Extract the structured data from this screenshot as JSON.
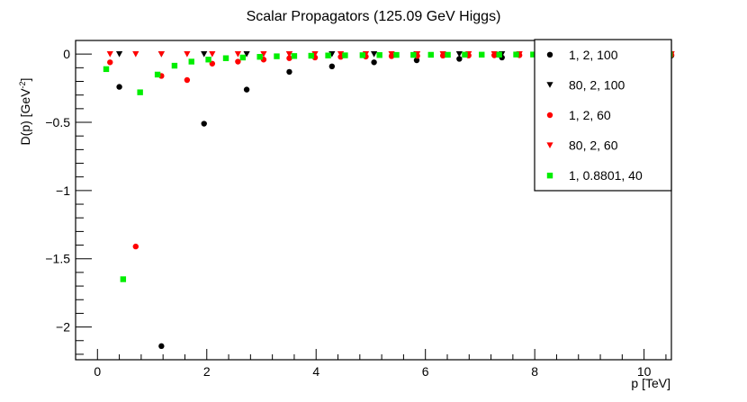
{
  "chart_data": {
    "type": "scatter",
    "title": "Scalar Propagators (125.09 GeV Higgs)",
    "xlabel": "p [TeV]",
    "ylabel": "D(p) [GeV⁻²]",
    "ylabel_main": "D(p) [GeV",
    "ylabel_exp": "-2",
    "ylabel_tail": "]",
    "xlim": [
      -0.4,
      10.5
    ],
    "ylim": [
      -2.24,
      0.1
    ],
    "xticks": [
      {
        "value": 0,
        "label": "0"
      },
      {
        "value": 2,
        "label": "2"
      },
      {
        "value": 4,
        "label": "4"
      },
      {
        "value": 6,
        "label": "6"
      },
      {
        "value": 8,
        "label": "8"
      },
      {
        "value": 10,
        "label": "10"
      }
    ],
    "yticks": [
      {
        "value": 0,
        "label": "0"
      },
      {
        "value": -0.5,
        "label": "−0.5"
      },
      {
        "value": -1,
        "label": "−1"
      },
      {
        "value": -1.5,
        "label": "−1.5"
      },
      {
        "value": -2,
        "label": "−2"
      }
    ],
    "grid": false,
    "legend_position": "top-right",
    "series": [
      {
        "name": "1, 2, 100",
        "color": "#000000",
        "marker": "circle",
        "x": [
          0.4,
          1.17,
          1.95,
          2.73,
          3.51,
          4.29,
          5.06,
          5.84,
          6.62,
          7.4,
          8.18,
          8.96,
          9.73,
          10.5
        ],
        "y": [
          -0.24,
          -2.14,
          -0.51,
          -0.26,
          -0.13,
          -0.09,
          -0.06,
          -0.045,
          -0.035,
          -0.025,
          -0.02,
          -0.015,
          -0.012,
          -0.01
        ]
      },
      {
        "name": "80, 2, 100",
        "color": "#000000",
        "marker": "triangle-down",
        "x": [
          0.4,
          1.17,
          1.95,
          2.73,
          3.51,
          4.29,
          5.06,
          5.84,
          6.62,
          7.4,
          8.18,
          8.96,
          9.73,
          10.5
        ],
        "y": [
          0.0,
          0.0,
          0.0,
          0.0,
          0.0,
          0.0,
          0.0,
          0.0,
          0.0,
          0.0,
          0.0,
          0.0,
          0.0,
          0.0
        ]
      },
      {
        "name": "1, 2, 60",
        "color": "#ff0000",
        "marker": "circle",
        "x": [
          0.23,
          0.7,
          1.17,
          1.64,
          2.1,
          2.57,
          3.04,
          3.51,
          3.98,
          4.45,
          4.91,
          5.38,
          5.85,
          6.32,
          6.79,
          7.26,
          7.72,
          8.19,
          8.66,
          9.13,
          9.6,
          10.07,
          10.5
        ],
        "y": [
          -0.06,
          -1.41,
          -0.16,
          -0.19,
          -0.07,
          -0.055,
          -0.04,
          -0.03,
          -0.025,
          -0.02,
          -0.018,
          -0.015,
          -0.013,
          -0.011,
          -0.01,
          -0.009,
          -0.008,
          -0.007,
          -0.006,
          -0.006,
          -0.005,
          -0.005,
          -0.005
        ]
      },
      {
        "name": "80, 2, 60",
        "color": "#ff0000",
        "marker": "triangle-down",
        "x": [
          0.23,
          0.7,
          1.17,
          1.64,
          2.1,
          2.57,
          3.04,
          3.51,
          3.98,
          4.45,
          4.91,
          5.38,
          5.85,
          6.32,
          6.79,
          7.26,
          7.72,
          8.19,
          8.66,
          9.13,
          9.6,
          10.07,
          10.5
        ],
        "y": [
          0.0,
          0.0,
          0.0,
          0.0,
          0.0,
          0.0,
          0.0,
          0.0,
          0.0,
          0.0,
          0.0,
          0.0,
          0.0,
          0.0,
          0.0,
          0.0,
          0.0,
          0.0,
          0.0,
          0.0,
          0.0,
          0.0,
          0.0
        ]
      },
      {
        "name": "1, 0.8801, 40",
        "color": "#00ee00",
        "marker": "square",
        "x": [
          0.16,
          0.47,
          0.78,
          1.1,
          1.41,
          1.72,
          2.03,
          2.35,
          2.66,
          2.97,
          3.28,
          3.6,
          3.91,
          4.22,
          4.53,
          4.85,
          5.16,
          5.47,
          5.78,
          6.1,
          6.41,
          6.72,
          7.03,
          7.35,
          7.66,
          7.97,
          8.28,
          8.6,
          8.91,
          9.22,
          9.53,
          9.85,
          10.16,
          10.47
        ],
        "y": [
          -0.11,
          -1.65,
          -0.28,
          -0.15,
          -0.085,
          -0.055,
          -0.04,
          -0.03,
          -0.025,
          -0.02,
          -0.016,
          -0.014,
          -0.012,
          -0.01,
          -0.009,
          -0.008,
          -0.007,
          -0.006,
          -0.006,
          -0.005,
          -0.005,
          -0.004,
          -0.004,
          -0.004,
          -0.003,
          -0.003,
          -0.003,
          -0.003,
          -0.003,
          -0.002,
          -0.002,
          -0.002,
          -0.002,
          -0.002
        ]
      }
    ]
  }
}
